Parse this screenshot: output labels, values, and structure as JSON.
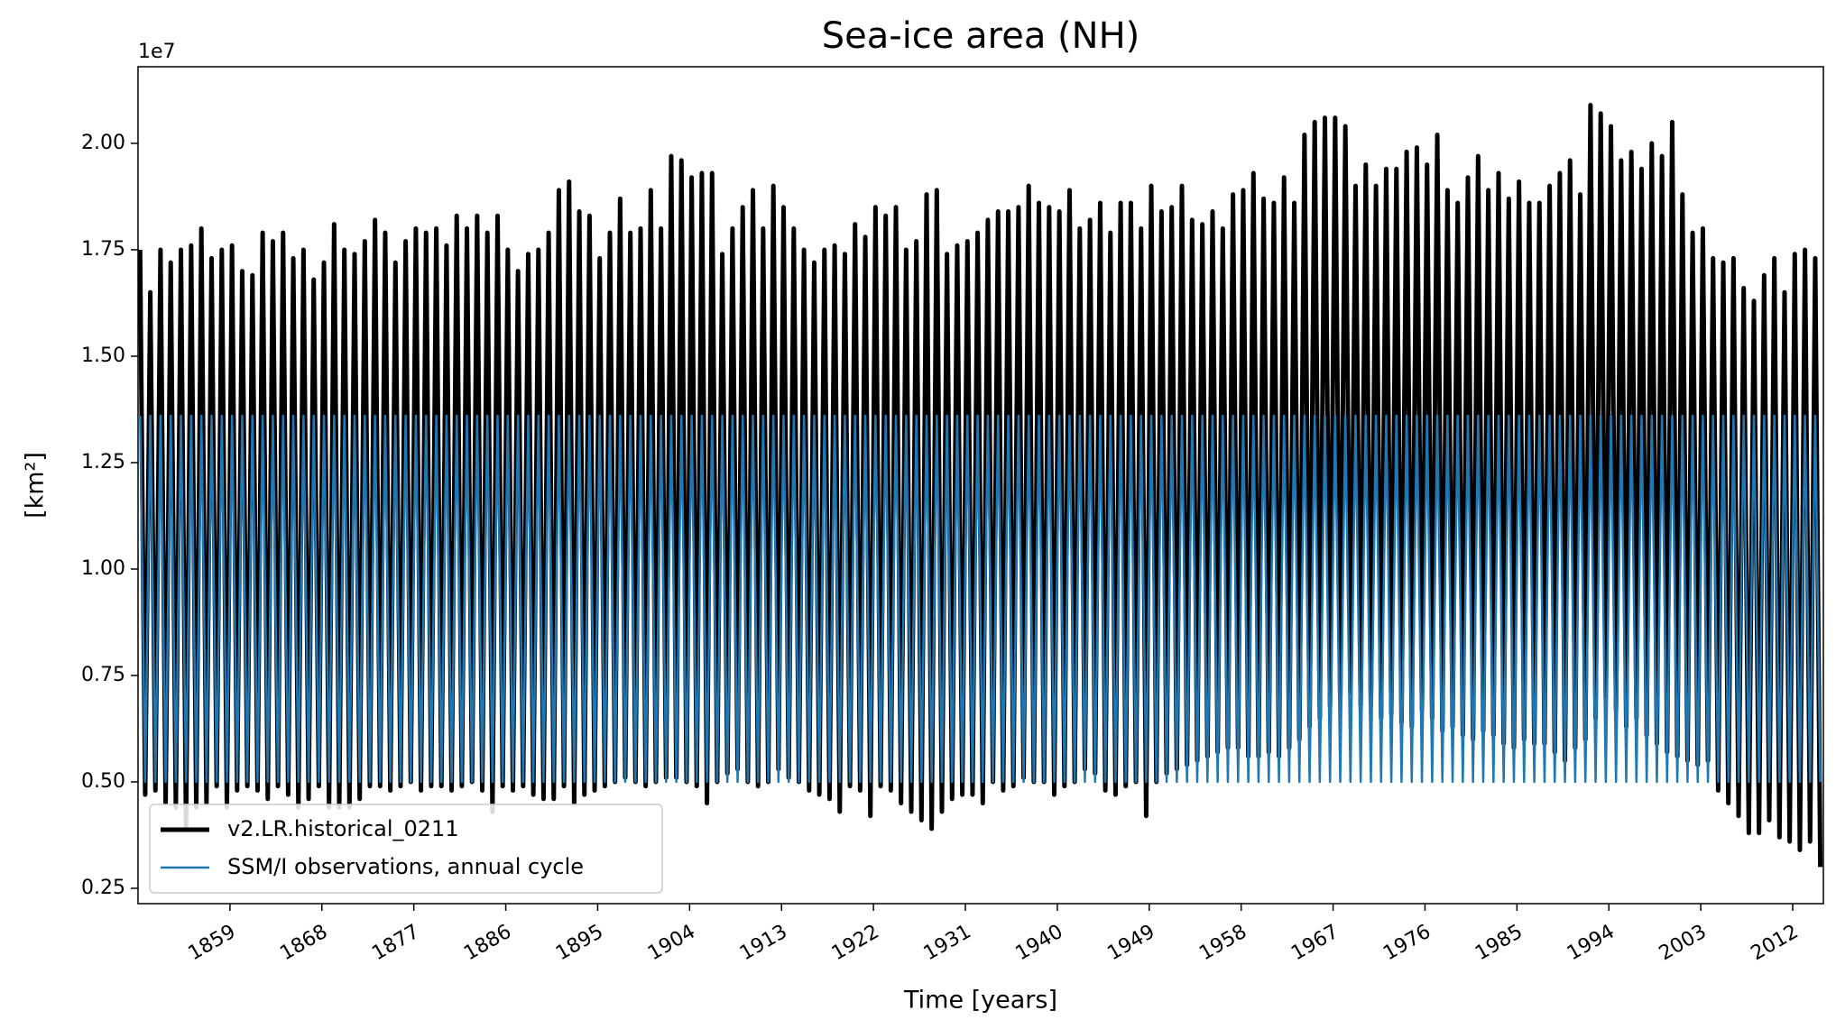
{
  "chart_data": {
    "type": "line",
    "title": "Sea-ice area (NH)",
    "x_label": "Time [years]",
    "y_label": "[km²]",
    "y_offset_label": "1e7",
    "xlim": [
      1850,
      2015
    ],
    "ylim": [
      2140000,
      21800000
    ],
    "xticks": [
      1859,
      1868,
      1877,
      1886,
      1895,
      1904,
      1913,
      1922,
      1931,
      1940,
      1949,
      1958,
      1967,
      1976,
      1985,
      1994,
      2003,
      2012
    ],
    "yticks": [
      {
        "value": 2500000,
        "label": "0.25"
      },
      {
        "value": 5000000,
        "label": "0.50"
      },
      {
        "value": 7500000,
        "label": "0.75"
      },
      {
        "value": 10000000,
        "label": "1.00"
      },
      {
        "value": 12500000,
        "label": "1.25"
      },
      {
        "value": 15000000,
        "label": "1.50"
      },
      {
        "value": 17500000,
        "label": "1.75"
      },
      {
        "value": 20000000,
        "label": "2.00"
      }
    ],
    "legend": "lower left",
    "x": [
      1850.2,
      1850.7,
      1851.2,
      1851.7,
      1852.2,
      1852.7,
      1853.2,
      1853.7,
      1854.2,
      1854.7,
      1855.2,
      1855.7,
      1856.2,
      1856.7,
      1857.2,
      1857.7,
      1858.2,
      1858.7,
      1859.2,
      1859.7,
      1860.2,
      1860.7,
      1861.2,
      1861.7,
      1862.2,
      1862.7,
      1863.2,
      1863.7,
      1864.2,
      1864.7,
      1865.2,
      1865.7,
      1866.2,
      1866.7,
      1867.2,
      1867.7,
      1868.2,
      1868.7,
      1869.2,
      1869.7,
      1870.2,
      1870.7,
      1871.2,
      1871.7,
      1872.2,
      1872.7,
      1873.2,
      1873.7,
      1874.2,
      1874.7,
      1875.2,
      1875.7,
      1876.2,
      1876.7,
      1877.2,
      1877.7,
      1878.2,
      1878.7,
      1879.2,
      1879.7,
      1880.2,
      1880.7,
      1881.2,
      1881.7,
      1882.2,
      1882.7,
      1883.2,
      1883.7,
      1884.2,
      1884.7,
      1885.2,
      1885.7,
      1886.2,
      1886.7,
      1887.2,
      1887.7,
      1888.2,
      1888.7,
      1889.2,
      1889.7,
      1890.2,
      1890.7,
      1891.2,
      1891.7,
      1892.2,
      1892.7,
      1893.2,
      1893.7,
      1894.2,
      1894.7,
      1895.2,
      1895.7,
      1896.2,
      1896.7,
      1897.2,
      1897.7,
      1898.2,
      1898.7,
      1899.2,
      1899.7,
      1900.2,
      1900.7,
      1901.2,
      1901.7,
      1902.2,
      1902.7,
      1903.2,
      1903.7,
      1904.2,
      1904.7,
      1905.2,
      1905.7,
      1906.2,
      1906.7,
      1907.2,
      1907.7,
      1908.2,
      1908.7,
      1909.2,
      1909.7,
      1910.2,
      1910.7,
      1911.2,
      1911.7,
      1912.2,
      1912.7,
      1913.2,
      1913.7,
      1914.2,
      1914.7,
      1915.2,
      1915.7,
      1916.2,
      1916.7,
      1917.2,
      1917.7,
      1918.2,
      1918.7,
      1919.2,
      1919.7,
      1920.2,
      1920.7,
      1921.2,
      1921.7,
      1922.2,
      1922.7,
      1923.2,
      1923.7,
      1924.2,
      1924.7,
      1925.2,
      1925.7,
      1926.2,
      1926.7,
      1927.2,
      1927.7,
      1928.2,
      1928.7,
      1929.2,
      1929.7,
      1930.2,
      1930.7,
      1931.2,
      1931.7,
      1932.2,
      1932.7,
      1933.2,
      1933.7,
      1934.2,
      1934.7,
      1935.2,
      1935.7,
      1936.2,
      1936.7,
      1937.2,
      1937.7,
      1938.2,
      1938.7,
      1939.2,
      1939.7,
      1940.2,
      1940.7,
      1941.2,
      1941.7,
      1942.2,
      1942.7,
      1943.2,
      1943.7,
      1944.2,
      1944.7,
      1945.2,
      1945.7,
      1946.2,
      1946.7,
      1947.2,
      1947.7,
      1948.2,
      1948.7,
      1949.2,
      1949.7,
      1950.2,
      1950.7,
      1951.2,
      1951.7,
      1952.2,
      1952.7,
      1953.2,
      1953.7,
      1954.2,
      1954.7,
      1955.2,
      1955.7,
      1956.2,
      1956.7,
      1957.2,
      1957.7,
      1958.2,
      1958.7,
      1959.2,
      1959.7,
      1960.2,
      1960.7,
      1961.2,
      1961.7,
      1962.2,
      1962.7,
      1963.2,
      1963.7,
      1964.2,
      1964.7,
      1965.2,
      1965.7,
      1966.2,
      1966.7,
      1967.2,
      1967.7,
      1968.2,
      1968.7,
      1969.2,
      1969.7,
      1970.2,
      1970.7,
      1971.2,
      1971.7,
      1972.2,
      1972.7,
      1973.2,
      1973.7,
      1974.2,
      1974.7,
      1975.2,
      1975.7,
      1976.2,
      1976.7,
      1977.2,
      1977.7,
      1978.2,
      1978.7,
      1979.2,
      1979.7,
      1980.2,
      1980.7,
      1981.2,
      1981.7,
      1982.2,
      1982.7,
      1983.2,
      1983.7,
      1984.2,
      1984.7,
      1985.2,
      1985.7,
      1986.2,
      1986.7,
      1987.2,
      1987.7,
      1988.2,
      1988.7,
      1989.2,
      1989.7,
      1990.2,
      1990.7,
      1991.2,
      1991.7,
      1992.2,
      1992.7,
      1993.2,
      1993.7,
      1994.2,
      1994.7,
      1995.2,
      1995.7,
      1996.2,
      1996.7,
      1997.2,
      1997.7,
      1998.2,
      1998.7,
      1999.2,
      1999.7,
      2000.2,
      2000.7,
      2001.2,
      2001.7,
      2002.2,
      2002.7,
      2003.2,
      2003.7,
      2004.2,
      2004.7,
      2005.2,
      2005.7,
      2006.2,
      2006.7,
      2007.2,
      2007.7,
      2008.2,
      2008.7,
      2009.2,
      2009.7,
      2010.2,
      2010.7,
      2011.2,
      2011.7,
      2012.2,
      2012.7,
      2013.2,
      2013.7,
      2014.2,
      2014.7
    ],
    "series": [
      {
        "name": "v2.LR.historical_0211",
        "color": "#000000",
        "width": 5,
        "values": [
          17500000,
          4700000,
          16500000,
          4800000,
          17500000,
          4500000,
          17200000,
          4400000,
          17500000,
          3900000,
          17600000,
          4400000,
          18000000,
          4500000,
          17300000,
          4900000,
          17500000,
          4400000,
          17600000,
          4800000,
          17000000,
          4900000,
          16900000,
          4800000,
          17900000,
          4600000,
          17700000,
          4900000,
          17900000,
          4700000,
          17300000,
          4400000,
          17500000,
          4600000,
          16800000,
          4900000,
          17200000,
          4400000,
          18100000,
          4400000,
          17500000,
          4400000,
          17400000,
          4600000,
          17700000,
          4900000,
          18200000,
          4900000,
          17900000,
          4800000,
          17200000,
          4900000,
          17700000,
          5000000,
          18000000,
          4800000,
          17900000,
          4900000,
          18000000,
          4900000,
          17600000,
          4800000,
          18300000,
          4900000,
          18000000,
          5000000,
          18300000,
          4800000,
          17900000,
          4300000,
          18300000,
          4900000,
          17500000,
          4800000,
          17000000,
          4900000,
          17400000,
          4700000,
          17500000,
          4600000,
          17900000,
          4600000,
          18900000,
          4900000,
          19100000,
          4500000,
          18400000,
          4700000,
          18300000,
          4800000,
          17300000,
          4900000,
          17900000,
          5000000,
          18700000,
          5100000,
          17900000,
          5000000,
          18000000,
          4900000,
          18900000,
          5000000,
          18000000,
          5100000,
          19700000,
          5100000,
          19600000,
          5000000,
          19200000,
          4900000,
          19300000,
          4500000,
          19300000,
          5000000,
          17400000,
          5200000,
          18000000,
          5300000,
          18500000,
          5000000,
          18900000,
          4900000,
          18000000,
          5000000,
          19000000,
          5300000,
          18500000,
          5100000,
          18000000,
          5000000,
          17500000,
          4800000,
          17200000,
          4700000,
          17500000,
          4600000,
          17600000,
          4300000,
          17400000,
          4900000,
          18100000,
          4800000,
          17800000,
          4200000,
          18500000,
          4900000,
          18300000,
          4800000,
          18500000,
          4500000,
          17500000,
          4300000,
          17700000,
          4100000,
          18800000,
          3900000,
          18900000,
          4300000,
          17400000,
          4600000,
          17600000,
          4700000,
          17700000,
          4700000,
          17900000,
          4500000,
          18200000,
          5000000,
          18400000,
          4800000,
          18400000,
          4900000,
          18500000,
          5100000,
          19000000,
          5000000,
          18600000,
          5000000,
          18500000,
          4700000,
          18400000,
          4900000,
          18900000,
          5000000,
          18000000,
          5300000,
          18200000,
          5200000,
          18600000,
          4800000,
          17900000,
          4700000,
          18600000,
          4900000,
          18600000,
          5000000,
          18000000,
          4200000,
          19000000,
          5000000,
          18400000,
          5200000,
          18500000,
          5300000,
          19000000,
          5400000,
          18200000,
          5500000,
          18100000,
          5600000,
          18400000,
          5700000,
          18000000,
          5800000,
          18800000,
          5800000,
          18900000,
          5600000,
          19300000,
          5600000,
          18700000,
          5700000,
          18600000,
          5600000,
          19200000,
          5800000,
          18600000,
          6000000,
          20200000,
          6300000,
          20500000,
          6500000,
          20600000,
          6800000,
          20600000,
          6900000,
          20400000,
          7100000,
          19000000,
          6800000,
          19500000,
          6800000,
          19000000,
          6500000,
          19400000,
          6600000,
          19400000,
          6400000,
          19800000,
          6300000,
          19900000,
          6700000,
          19500000,
          6500000,
          20200000,
          6200000,
          18900000,
          6300000,
          18600000,
          6100000,
          19200000,
          6000000,
          19700000,
          6200000,
          18900000,
          6100000,
          19300000,
          5900000,
          18700000,
          5800000,
          19100000,
          6000000,
          18600000,
          5900000,
          18600000,
          5900000,
          19000000,
          5700000,
          19300000,
          5500000,
          19600000,
          5800000,
          18800000,
          6000000,
          20900000,
          6500000,
          20700000,
          7000000,
          20400000,
          6700000,
          19600000,
          6300000,
          19800000,
          6500000,
          19400000,
          6100000,
          20000000,
          5900000,
          19700000,
          5700000,
          20500000,
          5600000,
          18800000,
          5500000,
          17900000,
          5400000,
          18000000,
          5500000,
          17300000,
          4800000,
          17200000,
          4500000,
          17300000,
          4200000,
          16600000,
          3800000,
          16300000,
          3800000,
          16900000,
          4100000,
          17300000,
          3700000,
          16500000,
          3600000,
          17400000,
          3400000,
          17500000,
          3600000,
          17300000,
          3000000
        ]
      },
      {
        "name": "SSM/I observations, annual cycle",
        "color": "#1f77b4",
        "width": 2.5,
        "values": [
          13600000,
          5000000,
          13600000,
          5000000,
          13600000,
          5000000,
          13600000,
          5000000,
          13600000,
          5000000,
          13600000,
          5000000,
          13600000,
          5000000,
          13600000,
          5000000,
          13600000,
          5000000,
          13600000,
          5000000,
          13600000,
          5000000,
          13600000,
          5000000,
          13600000,
          5000000,
          13600000,
          5000000,
          13600000,
          5000000,
          13600000,
          5000000,
          13600000,
          5000000,
          13600000,
          5000000,
          13600000,
          5000000,
          13600000,
          5000000,
          13600000,
          5000000,
          13600000,
          5000000,
          13600000,
          5000000,
          13600000,
          5000000,
          13600000,
          5000000,
          13600000,
          5000000,
          13600000,
          5000000,
          13600000,
          5000000,
          13600000,
          5000000,
          13600000,
          5000000,
          13600000,
          5000000,
          13600000,
          5000000,
          13600000,
          5000000,
          13600000,
          5000000,
          13600000,
          5000000,
          13600000,
          5000000,
          13600000,
          5000000,
          13600000,
          5000000,
          13600000,
          5000000,
          13600000,
          5000000,
          13600000,
          5000000,
          13600000,
          5000000,
          13600000,
          5000000,
          13600000,
          5000000,
          13600000,
          5000000,
          13600000,
          5000000,
          13600000,
          5000000,
          13600000,
          5000000,
          13600000,
          5000000,
          13600000,
          5000000,
          13600000,
          5000000,
          13600000,
          5000000,
          13600000,
          5000000,
          13600000,
          5000000,
          13600000,
          5000000,
          13600000,
          5000000,
          13600000,
          5000000,
          13600000,
          5000000,
          13600000,
          5000000,
          13600000,
          5000000,
          13600000,
          5000000,
          13600000,
          5000000,
          13600000,
          5000000,
          13600000,
          5000000,
          13600000,
          5000000,
          13600000,
          5000000,
          13600000,
          5000000,
          13600000,
          5000000,
          13600000,
          5000000,
          13600000,
          5000000,
          13600000,
          5000000,
          13600000,
          5000000,
          13600000,
          5000000,
          13600000,
          5000000,
          13600000,
          5000000,
          13600000,
          5000000,
          13600000,
          5000000,
          13600000,
          5000000,
          13600000,
          5000000,
          13600000,
          5000000,
          13600000,
          5000000,
          13600000,
          5000000,
          13600000,
          5000000,
          13600000,
          5000000,
          13600000,
          5000000,
          13600000,
          5000000,
          13600000,
          5000000,
          13600000,
          5000000,
          13600000,
          5000000,
          13600000,
          5000000,
          13600000,
          5000000,
          13600000,
          5000000,
          13600000,
          5000000,
          13600000,
          5000000,
          13600000,
          5000000,
          13600000,
          5000000,
          13600000,
          5000000,
          13600000,
          5000000,
          13600000,
          5000000,
          13600000,
          5000000,
          13600000,
          5000000,
          13600000,
          5000000,
          13600000,
          5000000,
          13600000,
          5000000,
          13600000,
          5000000,
          13600000,
          5000000,
          13600000,
          5000000,
          13600000,
          5000000,
          13600000,
          5000000,
          13600000,
          5000000,
          13600000,
          5000000,
          13600000,
          5000000,
          13600000,
          5000000,
          13600000,
          5000000,
          13600000,
          5000000,
          13600000,
          5000000,
          13600000,
          5000000,
          13600000,
          5000000,
          13600000,
          5000000,
          13600000,
          5000000,
          13600000,
          5000000,
          13600000,
          5000000,
          13600000,
          5000000,
          13600000,
          5000000,
          13600000,
          5000000,
          13600000,
          5000000,
          13600000,
          5000000,
          13600000,
          5000000,
          13600000,
          5000000,
          13600000,
          5000000,
          13600000,
          5000000,
          13600000,
          5000000,
          13600000,
          5000000,
          13600000,
          5000000,
          13600000,
          5000000,
          13600000,
          5000000,
          13600000,
          5000000,
          13600000,
          5000000,
          13600000,
          5000000,
          13600000,
          5000000,
          13600000,
          5000000,
          13600000,
          5000000,
          13600000,
          5000000,
          13600000,
          5000000,
          13600000,
          5000000,
          13600000,
          5000000,
          13600000,
          5000000,
          13600000,
          5000000,
          13600000,
          5000000,
          13600000,
          5000000,
          13600000,
          5000000,
          13600000,
          5000000,
          13600000,
          5000000,
          13600000,
          5000000,
          13600000,
          5000000,
          13600000,
          5000000,
          13600000,
          5000000,
          13600000,
          5000000,
          13600000,
          5000000,
          13600000,
          5000000,
          13600000,
          5000000,
          13600000,
          5000000,
          13600000,
          5000000,
          13600000,
          5000000,
          13600000,
          5000000
        ]
      }
    ]
  }
}
